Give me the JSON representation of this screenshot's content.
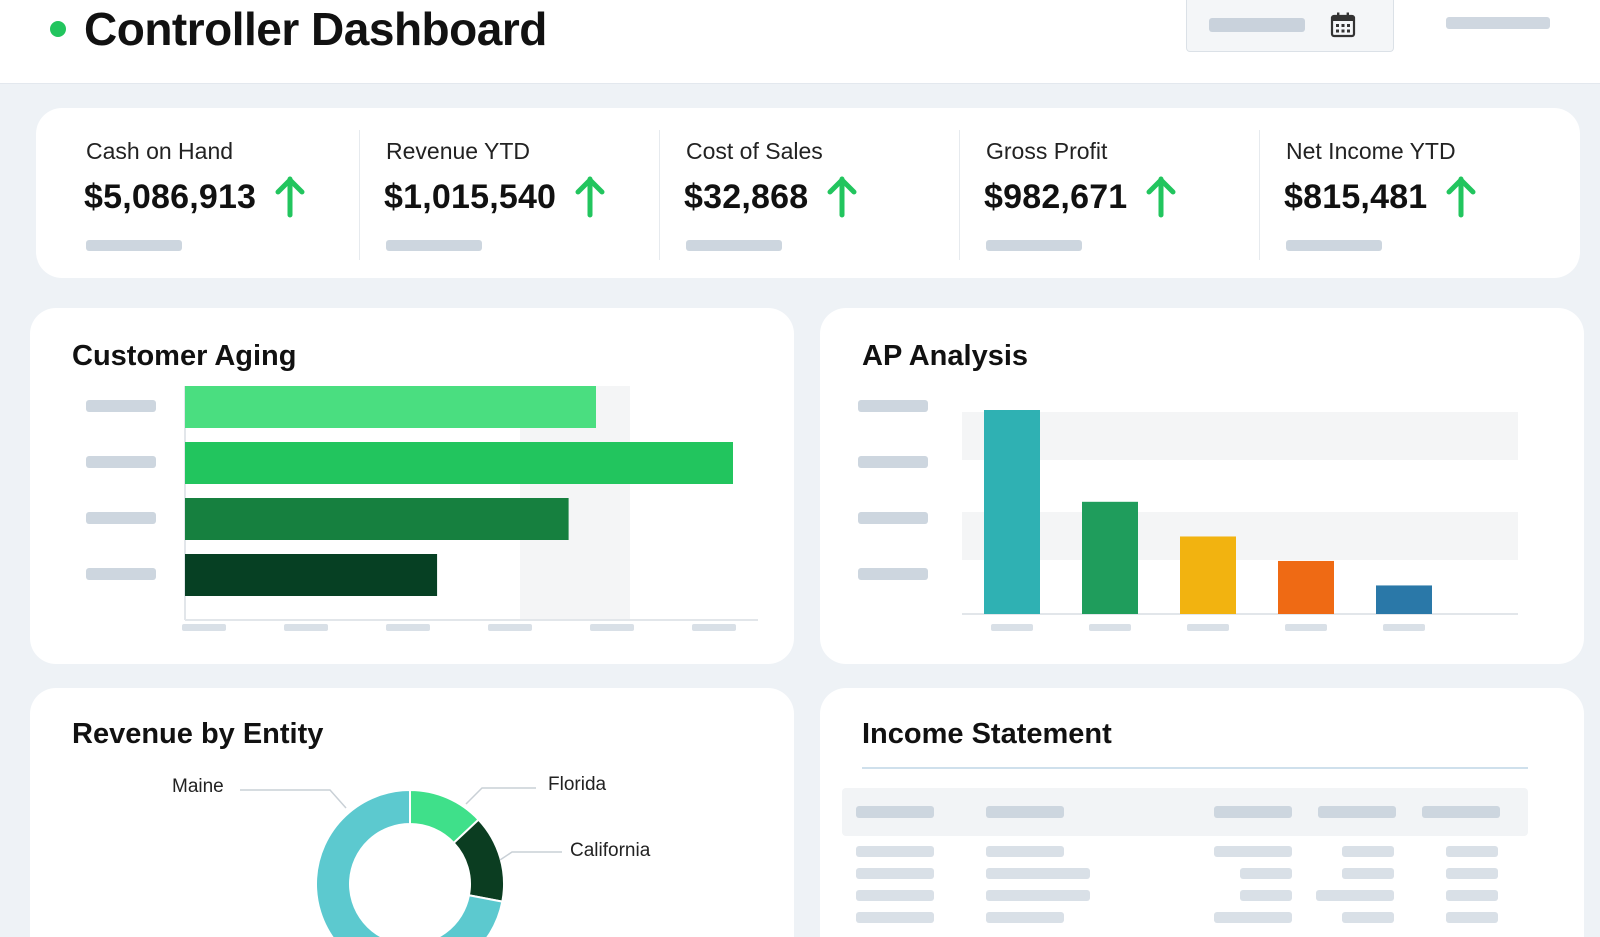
{
  "header": {
    "title": "Controller Dashboard",
    "status_color": "#22c55e",
    "date_icon": "calendar-icon"
  },
  "kpis": [
    {
      "label": "Cash on Hand",
      "value": "$5,086,913",
      "trend": "up"
    },
    {
      "label": "Revenue YTD",
      "value": "$1,015,540",
      "trend": "up"
    },
    {
      "label": "Cost of Sales",
      "value": "$32,868",
      "trend": "up"
    },
    {
      "label": "Gross Profit",
      "value": "$982,671",
      "trend": "up"
    },
    {
      "label": "Net Income YTD",
      "value": "$815,481",
      "trend": "up"
    }
  ],
  "colors": {
    "accent_green": "#22c55e",
    "aging": [
      "#4ade80",
      "#22c55e",
      "#16803f",
      "#064023"
    ],
    "ap": [
      "#2fb1b3",
      "#1f9d5c",
      "#f2b310",
      "#ef6a14",
      "#2a78a8"
    ],
    "entity": [
      "#5cc9cf",
      "#3fe08a",
      "#0b3d21"
    ]
  },
  "chart_data": [
    {
      "type": "bar",
      "orientation": "horizontal",
      "title": "Customer Aging",
      "values": [
        0.75,
        1.0,
        0.7,
        0.46
      ]
    },
    {
      "type": "bar",
      "title": "AP Analysis",
      "values": [
        1.0,
        0.55,
        0.38,
        0.26,
        0.14
      ]
    },
    {
      "type": "pie",
      "title": "Revenue by Entity",
      "series": [
        {
          "name": "Maine",
          "value": 0.72
        },
        {
          "name": "Florida",
          "value": 0.13
        },
        {
          "name": "California",
          "value": 0.15
        }
      ]
    }
  ],
  "income_statement": {
    "title": "Income Statement"
  }
}
